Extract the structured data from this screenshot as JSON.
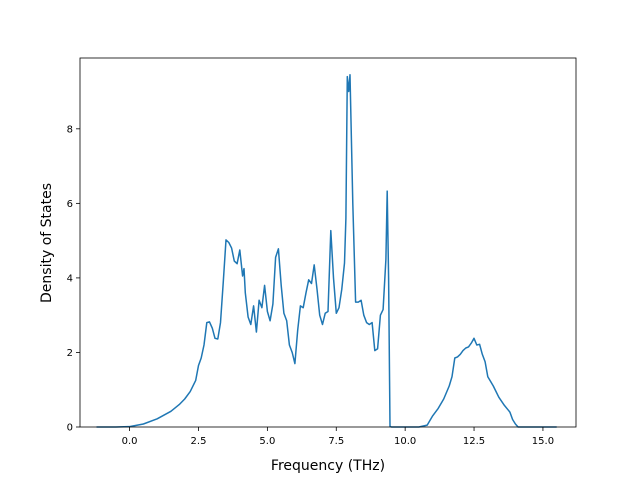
{
  "chart_data": {
    "type": "line",
    "title": "",
    "xlabel": "Frequency (THz)",
    "ylabel": "Density of States",
    "xlim": [
      -1.8,
      16.2
    ],
    "ylim": [
      0,
      9.9
    ],
    "xticks": [
      0.0,
      2.5,
      5.0,
      7.5,
      10.0,
      12.5,
      15.0
    ],
    "xtick_labels": [
      "0.0",
      "2.5",
      "5.0",
      "7.5",
      "10.0",
      "12.5",
      "15.0"
    ],
    "yticks": [
      0,
      2,
      4,
      6,
      8
    ],
    "ytick_labels": [
      "0",
      "2",
      "4",
      "6",
      "8"
    ],
    "grid": false,
    "line_color": "#1f77b4",
    "series": [
      {
        "x": [
          -1.2,
          -0.5,
          0.0,
          0.5,
          1.0,
          1.5,
          1.8,
          2.0,
          2.2,
          2.4,
          2.5,
          2.6,
          2.7,
          2.8,
          2.9,
          3.0,
          3.1,
          3.2,
          3.3,
          3.4,
          3.5,
          3.6,
          3.7,
          3.8,
          3.9,
          4.0,
          4.1,
          4.15,
          4.2,
          4.3,
          4.4,
          4.5,
          4.6,
          4.7,
          4.8,
          4.9,
          5.0,
          5.1,
          5.2,
          5.3,
          5.4,
          5.5,
          5.6,
          5.7,
          5.8,
          5.9,
          6.0,
          6.1,
          6.2,
          6.3,
          6.4,
          6.5,
          6.6,
          6.7,
          6.8,
          6.9,
          7.0,
          7.1,
          7.2,
          7.3,
          7.4,
          7.5,
          7.6,
          7.7,
          7.8,
          7.85,
          7.9,
          7.95,
          8.0,
          8.1,
          8.2,
          8.3,
          8.4,
          8.5,
          8.6,
          8.7,
          8.8,
          8.9,
          9.0,
          9.1,
          9.2,
          9.3,
          9.35,
          9.4,
          9.45,
          9.5,
          9.6,
          10.0,
          10.5,
          10.8,
          11.0,
          11.2,
          11.4,
          11.6,
          11.7,
          11.8,
          11.9,
          12.0,
          12.1,
          12.2,
          12.3,
          12.4,
          12.5,
          12.6,
          12.7,
          12.8,
          12.9,
          13.0,
          13.2,
          13.4,
          13.6,
          13.8,
          13.9,
          14.0,
          14.1,
          14.5,
          15.0,
          15.5
        ],
        "values": [
          0,
          0,
          0.01,
          0.08,
          0.22,
          0.42,
          0.6,
          0.75,
          0.95,
          1.25,
          1.65,
          1.85,
          2.2,
          2.8,
          2.82,
          2.65,
          2.38,
          2.36,
          2.8,
          3.9,
          5.02,
          4.95,
          4.8,
          4.45,
          4.38,
          4.75,
          4.05,
          4.25,
          3.6,
          2.95,
          2.75,
          3.25,
          2.55,
          3.4,
          3.2,
          3.8,
          3.1,
          2.85,
          3.3,
          4.55,
          4.78,
          3.8,
          3.05,
          2.85,
          2.2,
          2.0,
          1.7,
          2.6,
          3.25,
          3.2,
          3.6,
          3.95,
          3.85,
          4.35,
          3.7,
          3.0,
          2.75,
          3.05,
          3.1,
          5.27,
          4.0,
          3.05,
          3.2,
          3.7,
          4.4,
          5.6,
          9.4,
          9.0,
          9.45,
          6.0,
          3.35,
          3.35,
          3.4,
          3.0,
          2.8,
          2.75,
          2.8,
          2.05,
          2.1,
          3.0,
          3.15,
          4.5,
          6.33,
          4.0,
          0.02,
          0,
          0,
          0,
          0,
          0.05,
          0.3,
          0.5,
          0.75,
          1.1,
          1.35,
          1.85,
          1.88,
          1.95,
          2.05,
          2.12,
          2.15,
          2.25,
          2.38,
          2.2,
          2.22,
          1.95,
          1.75,
          1.35,
          1.1,
          0.8,
          0.58,
          0.4,
          0.2,
          0.08,
          0,
          0,
          0,
          0
        ]
      }
    ]
  }
}
